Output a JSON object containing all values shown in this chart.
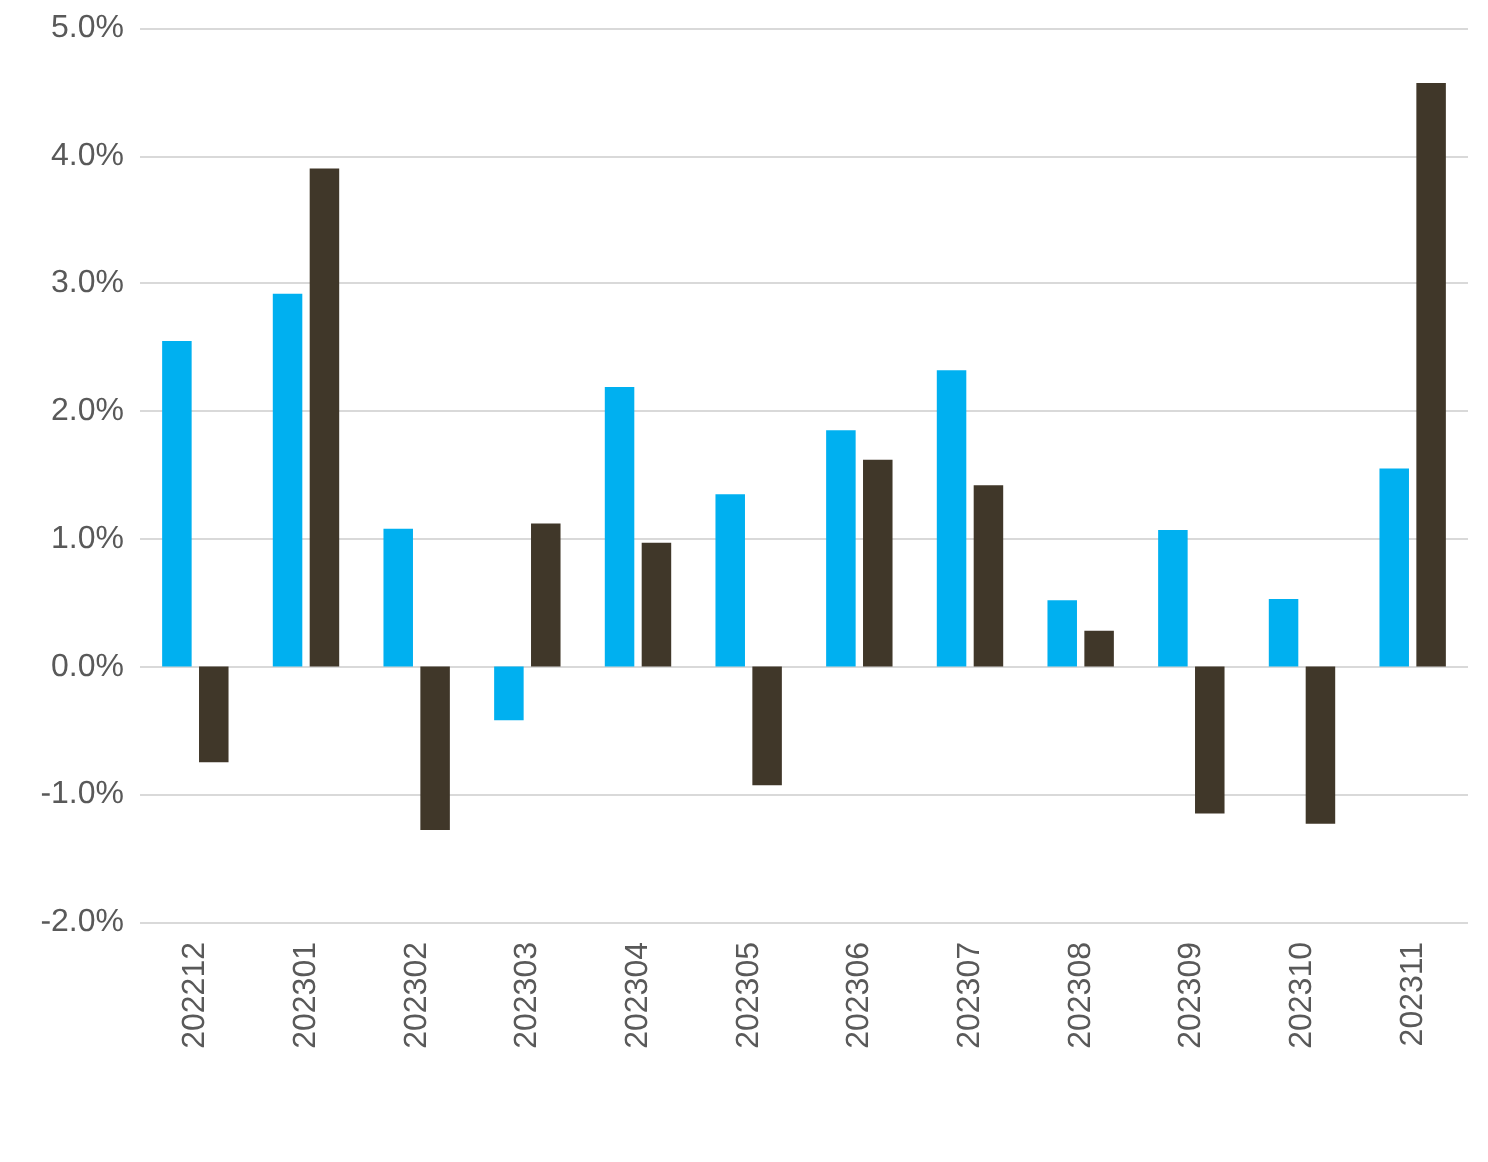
{
  "chart_data": {
    "type": "bar",
    "categories": [
      "202212",
      "202301",
      "202302",
      "202303",
      "202304",
      "202305",
      "202306",
      "202307",
      "202308",
      "202309",
      "202310",
      "202311"
    ],
    "series": [
      {
        "color": "#00b0f0",
        "values": [
          2.55,
          2.92,
          1.08,
          -0.42,
          2.19,
          1.35,
          1.85,
          2.32,
          0.52,
          1.07,
          0.53,
          1.55
        ]
      },
      {
        "color": "#403729",
        "values": [
          -0.75,
          3.9,
          -1.28,
          1.12,
          0.97,
          -0.93,
          1.62,
          1.42,
          0.28,
          -1.15,
          -1.23,
          4.57
        ]
      }
    ],
    "ylim": [
      -2,
      5
    ],
    "yticks": [
      {
        "value": -2,
        "label": "-2.0%"
      },
      {
        "value": -1,
        "label": "-1.0%"
      },
      {
        "value": 0,
        "label": "0.0%"
      },
      {
        "value": 1,
        "label": "1.0%"
      },
      {
        "value": 2,
        "label": "2.0%"
      },
      {
        "value": 3,
        "label": "3.0%"
      },
      {
        "value": 4,
        "label": "4.0%"
      },
      {
        "value": 5,
        "label": "5.0%"
      }
    ],
    "grid": "y"
  }
}
